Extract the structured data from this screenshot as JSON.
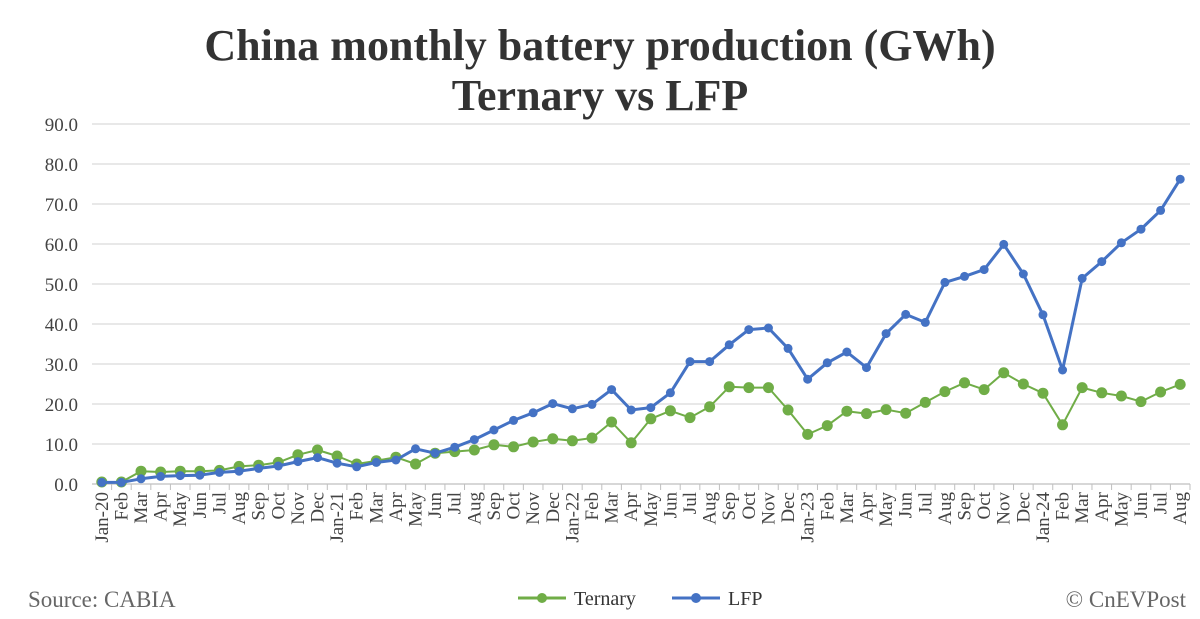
{
  "chart_data": {
    "type": "line",
    "title": "China monthly battery production (GWh)",
    "subtitle": "Ternary vs LFP",
    "ylim": [
      0,
      90
    ],
    "yticks": [
      "0.0",
      "10.0",
      "20.0",
      "30.0",
      "40.0",
      "50.0",
      "60.0",
      "70.0",
      "80.0",
      "90.0"
    ],
    "grid": true,
    "legend": "bottom",
    "categories": [
      "Jan-20",
      "Feb",
      "Mar",
      "Apr",
      "May",
      "Jun",
      "Jul",
      "Aug",
      "Sep",
      "Oct",
      "Nov",
      "Dec",
      "Jan-21",
      "Feb",
      "Mar",
      "Apr",
      "May",
      "Jun",
      "Jul",
      "Aug",
      "Sep",
      "Oct",
      "Nov",
      "Dec",
      "Jan-22",
      "Feb",
      "Mar",
      "Apr",
      "May",
      "Jun",
      "Jul",
      "Aug",
      "Sep",
      "Oct",
      "Nov",
      "Dec",
      "Jan-23",
      "Feb",
      "Mar",
      "Apr",
      "May",
      "Jun",
      "Jul",
      "Aug",
      "Sep",
      "Oct",
      "Nov",
      "Dec",
      "Jan-24",
      "Feb",
      "Mar",
      "Apr",
      "May",
      "Jun",
      "Jul",
      "Aug"
    ],
    "series": [
      {
        "name": "Ternary",
        "color": "#70ad47",
        "values": [
          0.5,
          0.5,
          3.2,
          3.0,
          3.2,
          3.2,
          3.4,
          4.4,
          4.7,
          5.4,
          7.3,
          8.5,
          7.0,
          5.0,
          5.8,
          6.7,
          5.0,
          7.7,
          8.1,
          8.5,
          9.8,
          9.3,
          10.5,
          11.3,
          10.8,
          11.5,
          15.5,
          10.3,
          16.3,
          18.3,
          16.6,
          19.3,
          24.3,
          24.1,
          24.1,
          18.5,
          12.4,
          14.6,
          18.2,
          17.6,
          18.6,
          17.7,
          20.4,
          23.1,
          25.3,
          23.6,
          27.8,
          25.0,
          22.7,
          14.8,
          24.1,
          22.8,
          22.0,
          20.6,
          23.0,
          24.9
        ]
      },
      {
        "name": "LFP",
        "color": "#4472c4",
        "values": [
          0.4,
          0.4,
          1.3,
          1.9,
          2.1,
          2.2,
          2.9,
          3.2,
          3.9,
          4.5,
          5.6,
          6.6,
          5.2,
          4.3,
          5.4,
          6.0,
          8.8,
          7.7,
          9.2,
          11.1,
          13.5,
          15.9,
          17.8,
          20.1,
          18.8,
          19.9,
          23.6,
          18.5,
          19.1,
          22.8,
          30.6,
          30.6,
          34.8,
          38.6,
          39.0,
          33.9,
          26.2,
          30.3,
          33.0,
          29.1,
          37.6,
          42.4,
          40.4,
          50.4,
          51.9,
          53.6,
          59.9,
          52.5,
          42.3,
          28.5,
          51.4,
          55.6,
          60.3,
          63.7,
          68.4,
          76.2
        ]
      }
    ]
  },
  "footer": {
    "source": "Source: CABIA",
    "credit": "© CnEVPost"
  }
}
